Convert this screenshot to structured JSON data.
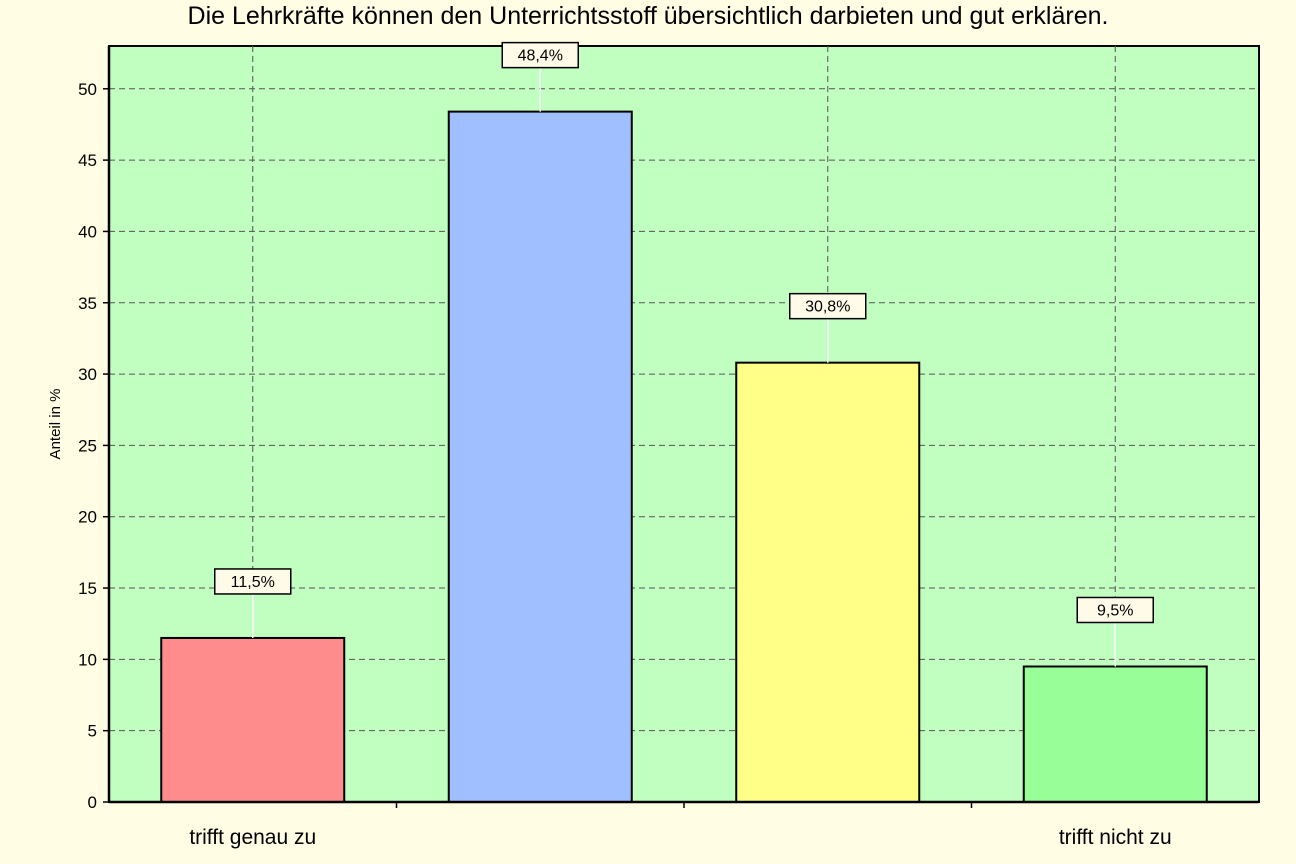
{
  "chart_data": {
    "type": "bar",
    "title": "Die Lehrkräfte können den Unterrichtsstoff übersichtlich darbieten und gut erklären.",
    "xlabel": "",
    "ylabel": "Anteil in %",
    "categories": [
      "trifft genau zu",
      "",
      "",
      "trifft nicht zu"
    ],
    "values": [
      11.5,
      48.4,
      30.8,
      9.5
    ],
    "data_labels": [
      "11,5%",
      "48,4%",
      "30,8%",
      "9,5%"
    ],
    "bar_colors": [
      "#ff8c8c",
      "#a0bfff",
      "#ffff88",
      "#98ff98"
    ],
    "ylim": [
      0,
      53
    ],
    "yticks": [
      0,
      5,
      10,
      15,
      20,
      25,
      30,
      35,
      40,
      45,
      50
    ],
    "grid": true,
    "legend": "none",
    "plot_background": "#c0ffc0",
    "page_background": "#fffde3"
  }
}
